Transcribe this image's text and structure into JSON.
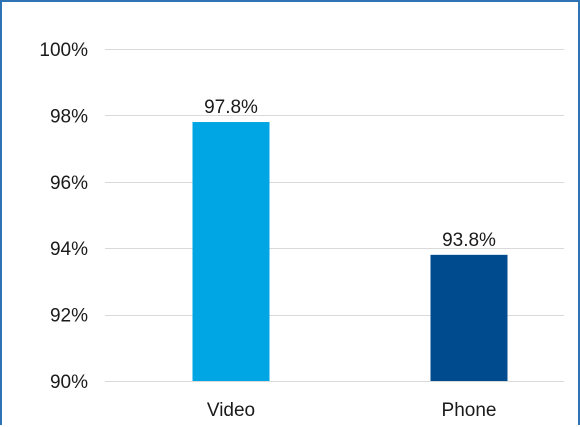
{
  "chart_data": {
    "type": "bar",
    "categories": [
      "Video",
      "Phone"
    ],
    "values": [
      97.8,
      93.8
    ],
    "data_labels": [
      "97.8%",
      "93.8%"
    ],
    "colors": [
      "#00a6e3",
      "#004b8d"
    ],
    "yticks": [
      90,
      92,
      94,
      96,
      98,
      100
    ],
    "ytick_labels": [
      "90%",
      "92%",
      "94%",
      "96%",
      "98%",
      "100%"
    ],
    "ylim": [
      90,
      100
    ],
    "title": "",
    "xlabel": "",
    "ylabel": "",
    "grid": true,
    "legend": "none"
  },
  "frame": {
    "border_color": "#2e74b5",
    "gridline_color": "#d9d9d9"
  }
}
